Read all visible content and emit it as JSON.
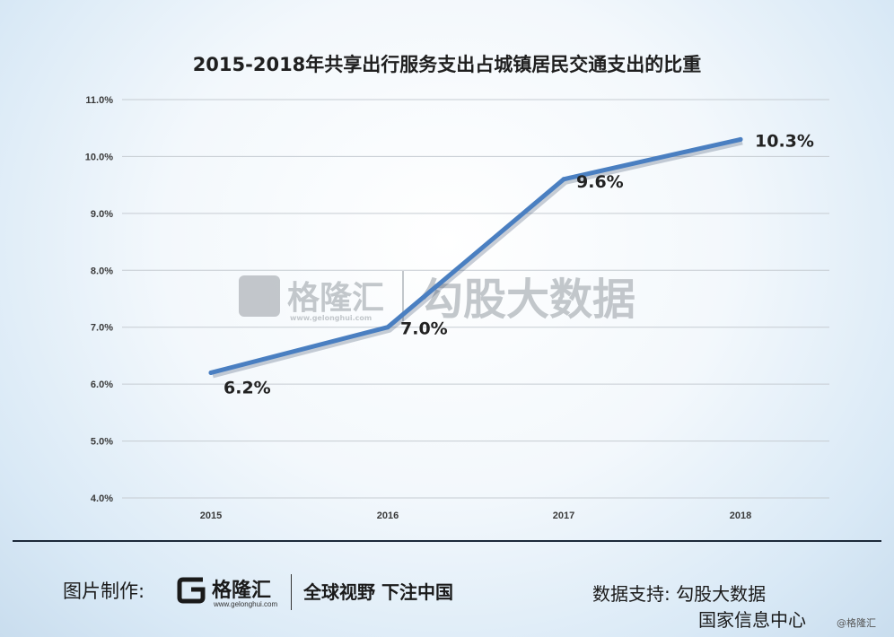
{
  "chart_data": {
    "type": "line",
    "title": "2015-2018年共享出行服务支出占城镇居民交通支出的比重",
    "categories": [
      "2015",
      "2016",
      "2017",
      "2018"
    ],
    "series": [
      {
        "values": [
          6.2,
          7.0,
          9.6,
          10.3
        ],
        "color": "#4a7fc1"
      }
    ],
    "data_labels": [
      "6.2%",
      "7.0%",
      "9.6%",
      "10.3%"
    ],
    "yticks": [
      "4.0%",
      "5.0%",
      "6.0%",
      "7.0%",
      "8.0%",
      "9.0%",
      "10.0%",
      "11.0%"
    ],
    "ylim": [
      4.0,
      11.0
    ],
    "grid": true,
    "xlabel": "",
    "ylabel": ""
  },
  "watermark": {
    "brand": "格隆汇",
    "url": "www.gelonghui.com",
    "partner": "勾股大数据"
  },
  "footer": {
    "credit_label": "图片制作:",
    "brand_name": "格隆汇",
    "brand_url": "www.gelonghui.com",
    "slogan": "全球视野 下注中国",
    "source_label": "数据支持: 勾股大数据",
    "source_line2": "国家信息中心",
    "corner_mark": "@格隆汇"
  }
}
